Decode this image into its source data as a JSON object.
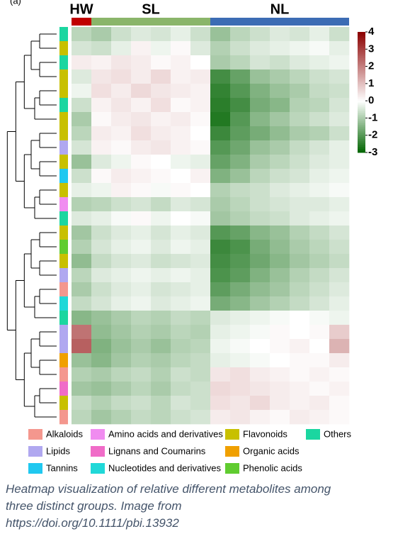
{
  "chart_data": {
    "type": "heatmap",
    "panel_label": "(a)",
    "colorscale": [
      "#006400",
      "#ffffff",
      "#8b0000"
    ],
    "clim": [
      -3,
      4
    ],
    "cticks": [
      4,
      3,
      2,
      1,
      0,
      -1,
      -2,
      -3
    ],
    "groups": [
      {
        "name": "HW",
        "color": "#c00000",
        "values": [
          [
            -0.8
          ],
          [
            -0.5
          ],
          [
            0.3
          ],
          [
            -0.4
          ],
          [
            -0.2
          ],
          [
            -0.6
          ],
          [
            -1.0
          ],
          [
            -0.8
          ],
          [
            -0.5
          ],
          [
            -1.2
          ],
          [
            -0.6
          ],
          [
            -0.3
          ],
          [
            -0.9
          ],
          [
            -0.4
          ],
          [
            -1.1
          ],
          [
            -0.9
          ],
          [
            -1.3
          ],
          [
            -0.8
          ],
          [
            -1.0
          ],
          [
            -0.7
          ],
          [
            -1.4
          ],
          [
            2.2
          ],
          [
            2.5
          ],
          [
            -1.2
          ],
          [
            -0.9
          ],
          [
            -1.1
          ],
          [
            -0.7
          ],
          [
            -0.8
          ]
        ]
      },
      {
        "name": "SL",
        "color": "#8ab56a",
        "values": [
          [
            -1.0,
            -0.6,
            -0.4,
            -0.5,
            -0.3,
            -0.6
          ],
          [
            -0.6,
            -0.3,
            0.2,
            -0.2,
            0.1,
            -0.4
          ],
          [
            0.2,
            0.4,
            0.3,
            0.1,
            0.2,
            0.0
          ],
          [
            0.4,
            0.5,
            0.3,
            0.6,
            0.2,
            0.3
          ],
          [
            0.5,
            0.3,
            0.6,
            0.4,
            0.3,
            0.2
          ],
          [
            0.2,
            0.4,
            0.2,
            0.5,
            0.1,
            0.2
          ],
          [
            0.1,
            0.3,
            0.4,
            0.2,
            0.3,
            0.1
          ],
          [
            0.3,
            0.2,
            0.5,
            0.3,
            0.2,
            0.0
          ],
          [
            0.2,
            0.1,
            0.3,
            0.4,
            0.2,
            0.1
          ],
          [
            -0.4,
            -0.2,
            0.1,
            0.0,
            -0.2,
            -0.3
          ],
          [
            0.1,
            0.3,
            0.2,
            0.1,
            0.0,
            0.2
          ],
          [
            -0.2,
            0.2,
            0.1,
            -0.1,
            0.1,
            0.0
          ],
          [
            -0.8,
            -0.6,
            -0.5,
            -0.7,
            -0.4,
            -0.5
          ],
          [
            -0.3,
            -0.1,
            0.1,
            -0.2,
            0.0,
            -0.1
          ],
          [
            -0.6,
            -0.4,
            -0.3,
            -0.5,
            -0.3,
            -0.4
          ],
          [
            -0.5,
            -0.3,
            -0.2,
            -0.4,
            -0.2,
            -0.3
          ],
          [
            -0.7,
            -0.5,
            -0.4,
            -0.6,
            -0.5,
            -0.4
          ],
          [
            -0.4,
            -0.3,
            -0.2,
            -0.3,
            -0.2,
            -0.3
          ],
          [
            -0.6,
            -0.4,
            -0.3,
            -0.5,
            -0.4,
            -0.3
          ],
          [
            -0.5,
            -0.3,
            -0.2,
            -0.4,
            -0.3,
            -0.2
          ],
          [
            -1.2,
            -1.0,
            -0.8,
            -0.9,
            -0.7,
            -0.8
          ],
          [
            -1.3,
            -1.1,
            -0.9,
            -1.0,
            -0.8,
            -0.9
          ],
          [
            -1.5,
            -1.2,
            -1.0,
            -1.2,
            -0.9,
            -0.8
          ],
          [
            -1.4,
            -1.1,
            -0.9,
            -1.0,
            -0.8,
            -0.7
          ],
          [
            -1.0,
            -0.8,
            -0.7,
            -0.9,
            -0.6,
            -0.7
          ],
          [
            -1.2,
            -1.0,
            -0.8,
            -1.0,
            -0.7,
            -0.6
          ],
          [
            -0.9,
            -0.7,
            -0.6,
            -0.8,
            -0.5,
            -0.6
          ],
          [
            -1.1,
            -0.9,
            -0.7,
            -0.8,
            -0.6,
            -0.5
          ]
        ]
      },
      {
        "name": "NL",
        "color": "#3c6cb4",
        "values": [
          [
            -1.2,
            -0.8,
            -0.6,
            -0.4,
            -0.5,
            -0.3,
            -0.6
          ],
          [
            -0.9,
            -0.6,
            -0.4,
            -0.3,
            -0.2,
            -0.1,
            -0.3
          ],
          [
            -1.0,
            -0.8,
            -0.5,
            -0.6,
            -0.4,
            -0.3,
            -0.2
          ],
          [
            -2.2,
            -1.8,
            -1.2,
            -1.0,
            -0.8,
            -0.6,
            -0.5
          ],
          [
            -2.4,
            -2.0,
            -1.5,
            -1.2,
            -1.0,
            -0.7,
            -0.6
          ],
          [
            -2.5,
            -2.2,
            -1.6,
            -1.4,
            -0.9,
            -0.8,
            -0.5
          ],
          [
            -2.6,
            -2.0,
            -1.4,
            -1.1,
            -0.8,
            -0.6,
            -0.4
          ],
          [
            -2.3,
            -1.9,
            -1.6,
            -1.3,
            -1.0,
            -0.9,
            -0.6
          ],
          [
            -2.0,
            -1.7,
            -1.2,
            -1.0,
            -0.7,
            -0.5,
            -0.3
          ],
          [
            -1.8,
            -1.5,
            -1.0,
            -0.8,
            -0.6,
            -0.4,
            -0.3
          ],
          [
            -1.5,
            -1.2,
            -0.8,
            -0.6,
            -0.5,
            -0.3,
            -0.2
          ],
          [
            -0.9,
            -0.7,
            -0.6,
            -0.4,
            -0.3,
            -0.2,
            -0.1
          ],
          [
            -1.0,
            -0.8,
            -0.6,
            -0.5,
            -0.4,
            -0.4,
            -0.3
          ],
          [
            -1.1,
            -0.9,
            -0.7,
            -0.6,
            -0.4,
            -0.3,
            -0.2
          ],
          [
            -2.0,
            -1.8,
            -1.4,
            -1.2,
            -0.9,
            -0.7,
            -0.5
          ],
          [
            -2.3,
            -2.1,
            -1.6,
            -1.3,
            -1.0,
            -0.8,
            -0.6
          ],
          [
            -2.2,
            -2.0,
            -1.7,
            -1.4,
            -1.1,
            -0.9,
            -0.7
          ],
          [
            -2.1,
            -1.9,
            -1.5,
            -1.2,
            -0.9,
            -0.7,
            -0.5
          ],
          [
            -1.9,
            -1.6,
            -1.3,
            -1.1,
            -0.8,
            -0.6,
            -0.4
          ],
          [
            -1.6,
            -1.4,
            -1.1,
            -0.9,
            -0.7,
            -0.5,
            -0.3
          ],
          [
            -0.4,
            -0.3,
            -0.2,
            -0.1,
            0.0,
            -0.1,
            -0.2
          ],
          [
            -0.3,
            -0.2,
            -0.1,
            0.1,
            0.0,
            0.1,
            0.8
          ],
          [
            -0.2,
            -0.1,
            0.0,
            0.1,
            0.2,
            0.0,
            1.2
          ],
          [
            -0.3,
            -0.2,
            -0.1,
            0.0,
            0.1,
            0.1,
            0.3
          ],
          [
            0.4,
            0.5,
            0.3,
            0.2,
            0.1,
            0.2,
            0.1
          ],
          [
            0.6,
            0.5,
            0.4,
            0.3,
            0.2,
            0.1,
            0.2
          ],
          [
            0.5,
            0.4,
            0.6,
            0.3,
            0.2,
            0.3,
            0.1
          ],
          [
            0.3,
            0.4,
            0.2,
            0.1,
            0.3,
            0.2,
            0.1
          ]
        ]
      }
    ],
    "row_colors": [
      "#1bd6a0",
      "#c8c000",
      "#1bd6a0",
      "#c8c000",
      "#c8c000",
      "#1bd6a0",
      "#c8c000",
      "#c8c000",
      "#b0a8f0",
      "#c8c000",
      "#20c8f0",
      "#c8c000",
      "#f08cf0",
      "#1bd6a0",
      "#c8c000",
      "#60cc30",
      "#c8c000",
      "#b0a8f0",
      "#f4978e",
      "#20d8d8",
      "#1bd6a0",
      "#b0a8f0",
      "#b0a8f0",
      "#f0a000",
      "#f4978e",
      "#f06cc8",
      "#c8c000",
      "#f4978e"
    ],
    "legend": [
      {
        "name": "Alkaloids",
        "color": "#f4978e"
      },
      {
        "name": "Lipids",
        "color": "#b0a8f0"
      },
      {
        "name": "Tannins",
        "color": "#20c8f0"
      },
      {
        "name": "Amino acids and derivatives",
        "color": "#f08cf0"
      },
      {
        "name": "Lignans and Coumarins",
        "color": "#f06cc8"
      },
      {
        "name": "Nucleotides and derivatives",
        "color": "#20d8d8"
      },
      {
        "name": "Flavonoids",
        "color": "#c8c000"
      },
      {
        "name": "Organic acids",
        "color": "#f0a000"
      },
      {
        "name": "Phenolic acids",
        "color": "#60cc30"
      },
      {
        "name": "Others",
        "color": "#1bd6a0"
      }
    ]
  },
  "caption": [
    "Heatmap visualization of relative different metabolites among",
    "three distinct groups. Image from",
    "https://doi.org/10.1111/pbi.13932"
  ]
}
